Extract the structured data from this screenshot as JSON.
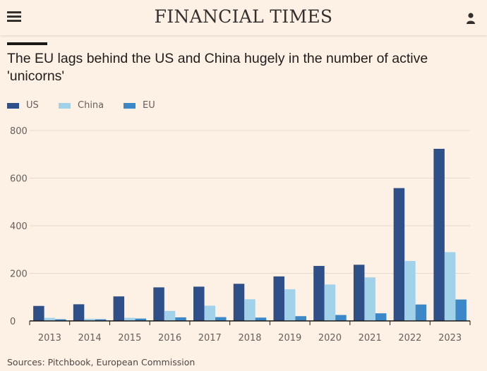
{
  "header": {
    "brand": "FINANCIAL TIMES",
    "menu_icon": "hamburger-menu-icon",
    "user_icon": "user-icon"
  },
  "article": {
    "title": "The EU lags behind the US and China hugely in the number of active 'unicorns'",
    "source": "Sources: Pitchbook, European Commission"
  },
  "colors": {
    "us": "#2e4f87",
    "china": "#a2d2ea",
    "eu": "#3c87c7",
    "grid": "#e6d9ce",
    "axis": "#1a1817",
    "text": "#66605c"
  },
  "chart_data": {
    "type": "bar",
    "title": "The EU lags behind the US and China hugely in the number of active 'unicorns'",
    "xlabel": "",
    "ylabel": "",
    "ylim": [
      0,
      800
    ],
    "yticks": [
      0,
      200,
      400,
      600,
      800
    ],
    "grid": true,
    "legend": "top-left",
    "categories": [
      "2013",
      "2014",
      "2015",
      "2016",
      "2017",
      "2018",
      "2019",
      "2020",
      "2021",
      "2022",
      "2023"
    ],
    "series": [
      {
        "name": "US",
        "color": "#2e4f87",
        "values": [
          63,
          70,
          103,
          141,
          144,
          156,
          187,
          231,
          236,
          558,
          723
        ]
      },
      {
        "name": "China",
        "color": "#a2d2ea",
        "values": [
          13,
          9,
          13,
          42,
          64,
          91,
          133,
          153,
          183,
          252,
          289
        ]
      },
      {
        "name": "EU",
        "color": "#3c87c7",
        "values": [
          7,
          7,
          10,
          15,
          16,
          14,
          20,
          25,
          32,
          69,
          90
        ]
      }
    ],
    "source": "Sources: Pitchbook, European Commission"
  }
}
